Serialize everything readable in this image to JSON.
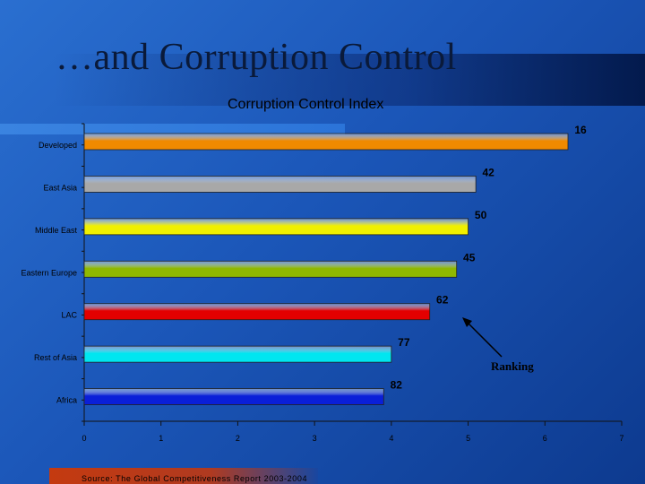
{
  "slide": {
    "title": "…and Corruption Control",
    "source": "Source: The Global Competitiveness Report 2003-2004",
    "annotation": "Ranking"
  },
  "colors": {
    "orange": "#f08a00",
    "gray": "#a8a8a8",
    "yellow": "#f0f000",
    "olive": "#8fb800",
    "red": "#e30000",
    "cyan": "#00e6f0",
    "blue": "#0a1fd8"
  },
  "chart_data": {
    "type": "bar",
    "orientation": "horizontal",
    "title": "Corruption Control Index",
    "xlabel": "",
    "ylabel": "",
    "xlim": [
      0,
      7
    ],
    "x_ticks": [
      "0",
      "1",
      "2",
      "3",
      "4",
      "5",
      "6",
      "7"
    ],
    "categories": [
      "Developed",
      "East Asia",
      "Middle East",
      "Eastern Europe",
      "LAC",
      "Rest of Asia",
      "Africa"
    ],
    "values": [
      6.3,
      5.1,
      5.0,
      4.85,
      4.5,
      4.0,
      3.9
    ],
    "rankings": [
      "16",
      "42",
      "50",
      "45",
      "62",
      "77",
      "82"
    ],
    "bar_colors": [
      "#f08a00",
      "#a8a8a8",
      "#f0f000",
      "#8fb800",
      "#e30000",
      "#00e6f0",
      "#0a1fd8"
    ],
    "grid": false
  }
}
